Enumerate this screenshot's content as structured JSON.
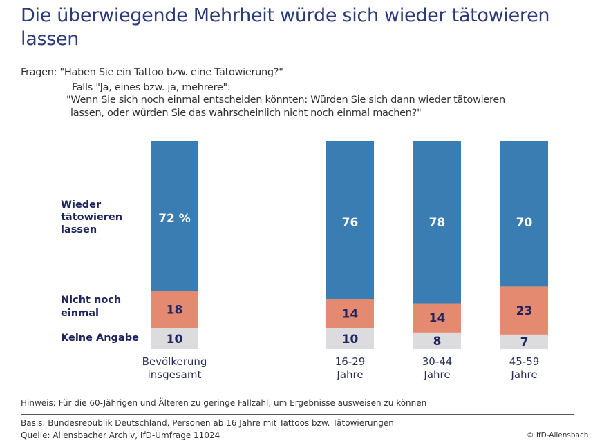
{
  "title": "Die überwiegende Mehrheit würde sich wieder tätowieren lassen",
  "question": {
    "line1": "Fragen: \"Haben Sie ein Tattoo bzw. eine Tätowierung?\"",
    "line2": "Falls \"Ja, eines bzw. ja, mehrere\":",
    "line3": "\"Wenn Sie sich noch einmal entscheiden könnten: Würden Sie sich dann wieder tätowieren",
    "line4": "lassen, oder würden Sie das wahrscheinlich nicht noch einmal machen?\""
  },
  "chart_data": {
    "type": "bar",
    "stacked": true,
    "unit": "%",
    "ylim": [
      0,
      100
    ],
    "categories": [
      "Bevölkerung insgesamt",
      "16-29 Jahre",
      "30-44 Jahre",
      "45-59 Jahre"
    ],
    "category_lines": [
      [
        "Bevölkerung",
        "insgesamt"
      ],
      [
        "16-29",
        "Jahre"
      ],
      [
        "30-44",
        "Jahre"
      ],
      [
        "45-59",
        "Jahre"
      ]
    ],
    "series": [
      {
        "name": "Keine Angabe",
        "values": [
          10,
          10,
          8,
          7
        ],
        "color": "#dcdcde"
      },
      {
        "name": "Nicht noch einmal",
        "values": [
          18,
          14,
          14,
          23
        ],
        "color": "#e48a70"
      },
      {
        "name": "Wieder tätowieren lassen",
        "values": [
          72,
          76,
          78,
          70
        ],
        "color": "#3a7db3"
      }
    ],
    "data_labels": [
      [
        "10",
        "10",
        "8",
        "7"
      ],
      [
        "18",
        "14",
        "14",
        "23"
      ],
      [
        "72 %",
        "76",
        "78",
        "70"
      ]
    ],
    "legend_lines": [
      [
        "Keine Angabe"
      ],
      [
        "Nicht noch",
        "einmal"
      ],
      [
        "Wieder",
        "tätowieren",
        "lassen"
      ]
    ],
    "legend_placement": "left",
    "grid": false
  },
  "footer": {
    "note": "Hinweis: Für die 60-Jährigen und Älteren zu geringe Fallzahl, um Ergebnisse ausweisen zu können",
    "basis": "Basis: Bundesrepublik Deutschland, Personen ab 16 Jahre mit Tattoos bzw. Tätowierungen",
    "source": "Quelle: Allensbacher Archiv, IfD-Umfrage 11024",
    "copyright": "© IfD-Allensbach"
  }
}
